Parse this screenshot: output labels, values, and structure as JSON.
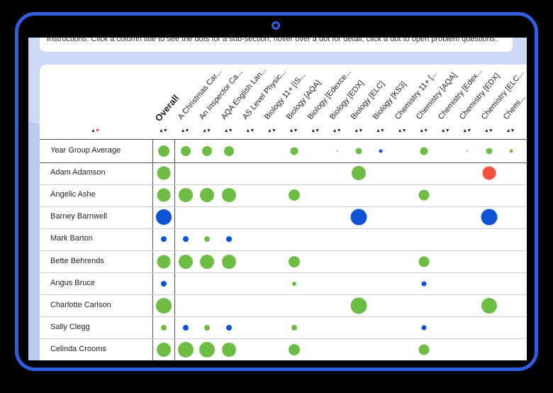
{
  "instructions": "Instructions: Click a column title to see the dots for a sub-section, hover over a dot for detail, click a dot to open problem questions.",
  "columns": [
    "Overall",
    "A Christmas Car...",
    "An Inspector Ca...",
    "AQA English Lan...",
    "AS Level Physic...",
    "Biology 11+ [IS...",
    "Biology [AQA]",
    "Biology [Edexce...",
    "Biology [EDX]",
    "Biology [ELC]",
    "Biology [KS3]",
    "Chemistry 11+ [...",
    "Chemistry [AQA]",
    "Chemistry [Edex...",
    "Chemistry [EDX]",
    "Chemistry [ELC...",
    "Chemi..."
  ],
  "rows": [
    {
      "name": "Year Group Average",
      "dots": [
        [
          "g",
          16
        ],
        [
          "g",
          14
        ],
        [
          "g",
          14
        ],
        [
          "g",
          14
        ],
        null,
        null,
        [
          "g",
          11
        ],
        null,
        [
          "g",
          2
        ],
        [
          "g",
          9
        ],
        [
          "b",
          5
        ],
        null,
        [
          "g",
          11
        ],
        null,
        [
          "g",
          2
        ],
        [
          "g",
          9
        ],
        [
          "g",
          5
        ]
      ]
    },
    {
      "name": "Adam Adamson",
      "dots": [
        [
          "g",
          19
        ],
        null,
        null,
        null,
        null,
        null,
        null,
        null,
        null,
        [
          "g",
          20
        ],
        null,
        null,
        null,
        null,
        null,
        [
          "r",
          19
        ],
        null
      ]
    },
    {
      "name": "Angelic Ashe",
      "dots": [
        [
          "g",
          19
        ],
        [
          "g",
          20
        ],
        [
          "g",
          20
        ],
        [
          "g",
          20
        ],
        null,
        null,
        [
          "g",
          16
        ],
        null,
        null,
        null,
        null,
        null,
        [
          "g",
          15
        ],
        null,
        null,
        null,
        null
      ]
    },
    {
      "name": "Barney Barnwell",
      "dots": [
        [
          "b",
          22
        ],
        null,
        null,
        null,
        null,
        null,
        null,
        null,
        null,
        [
          "b",
          23
        ],
        null,
        null,
        null,
        null,
        null,
        [
          "b",
          23
        ],
        null
      ]
    },
    {
      "name": "Mark Barton",
      "dots": [
        [
          "b",
          8
        ],
        [
          "b",
          8
        ],
        [
          "g",
          8
        ],
        [
          "b",
          8
        ],
        null,
        null,
        null,
        null,
        null,
        null,
        null,
        null,
        null,
        null,
        null,
        null,
        null
      ]
    },
    {
      "name": "Bette Behrends",
      "dots": [
        [
          "g",
          19
        ],
        [
          "g",
          20
        ],
        [
          "g",
          20
        ],
        [
          "g",
          20
        ],
        null,
        null,
        [
          "g",
          16
        ],
        null,
        null,
        null,
        null,
        null,
        [
          "g",
          15
        ],
        null,
        null,
        null,
        null
      ]
    },
    {
      "name": "Angus Bruce",
      "dots": [
        [
          "b",
          8
        ],
        null,
        null,
        null,
        null,
        null,
        [
          "g",
          6
        ],
        null,
        null,
        null,
        null,
        null,
        [
          "b",
          7
        ],
        null,
        null,
        null,
        null
      ]
    },
    {
      "name": "Charlotte Carlson",
      "dots": [
        [
          "g",
          22
        ],
        null,
        null,
        null,
        null,
        null,
        null,
        null,
        null,
        [
          "g",
          23
        ],
        null,
        null,
        null,
        null,
        null,
        [
          "g",
          22
        ],
        null
      ]
    },
    {
      "name": "Sally Clegg",
      "dots": [
        [
          "g",
          8
        ],
        [
          "b",
          8
        ],
        [
          "g",
          8
        ],
        [
          "b",
          8
        ],
        null,
        null,
        [
          "g",
          8
        ],
        null,
        null,
        null,
        null,
        null,
        [
          "b",
          7
        ],
        null,
        null,
        null,
        null
      ]
    },
    {
      "name": "Celinda Crooms",
      "dots": [
        [
          "g",
          20
        ],
        [
          "g",
          22
        ],
        [
          "g",
          22
        ],
        [
          "g",
          20
        ],
        null,
        null,
        [
          "g",
          16
        ],
        null,
        null,
        null,
        null,
        null,
        [
          "g",
          15
        ],
        null,
        null,
        null,
        null
      ]
    }
  ],
  "colors": {
    "green": "#6dbd45",
    "blue": "#0b53d4",
    "red": "#f2553b",
    "frame": "#2f5fe0"
  }
}
